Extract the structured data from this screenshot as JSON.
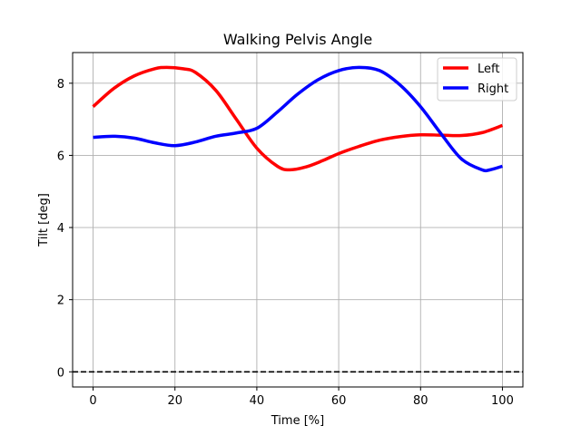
{
  "chart_data": {
    "type": "line",
    "title": "Walking Pelvis Angle",
    "xlabel": "Time [%]",
    "ylabel": "Tilt [deg]",
    "xlim": [
      -5,
      105
    ],
    "ylim": [
      -0.42,
      8.85
    ],
    "xticks": [
      0,
      20,
      40,
      60,
      80,
      100
    ],
    "yticks": [
      0,
      2,
      4,
      6,
      8
    ],
    "grid": true,
    "legend_position": "top-right",
    "reference_line": {
      "y": 0,
      "style": "dashed",
      "color": "#000000"
    },
    "series": [
      {
        "name": "Left",
        "color": "#ff0000",
        "x": [
          0,
          5,
          10,
          15,
          18,
          22,
          25,
          30,
          35,
          40,
          45,
          48,
          52,
          56,
          60,
          65,
          70,
          75,
          80,
          85,
          90,
          95,
          100
        ],
        "values": [
          7.35,
          7.85,
          8.2,
          8.4,
          8.44,
          8.4,
          8.3,
          7.8,
          7.0,
          6.2,
          5.7,
          5.6,
          5.68,
          5.85,
          6.05,
          6.25,
          6.42,
          6.52,
          6.57,
          6.56,
          6.55,
          6.63,
          6.83
        ]
      },
      {
        "name": "Right",
        "color": "#0000ff",
        "x": [
          0,
          5,
          10,
          15,
          20,
          25,
          30,
          35,
          40,
          45,
          50,
          55,
          60,
          65,
          70,
          75,
          80,
          85,
          90,
          95,
          97,
          100
        ],
        "values": [
          6.5,
          6.53,
          6.48,
          6.35,
          6.27,
          6.37,
          6.53,
          6.62,
          6.75,
          7.2,
          7.7,
          8.1,
          8.35,
          8.44,
          8.35,
          7.95,
          7.35,
          6.6,
          5.9,
          5.6,
          5.6,
          5.7
        ]
      }
    ]
  }
}
